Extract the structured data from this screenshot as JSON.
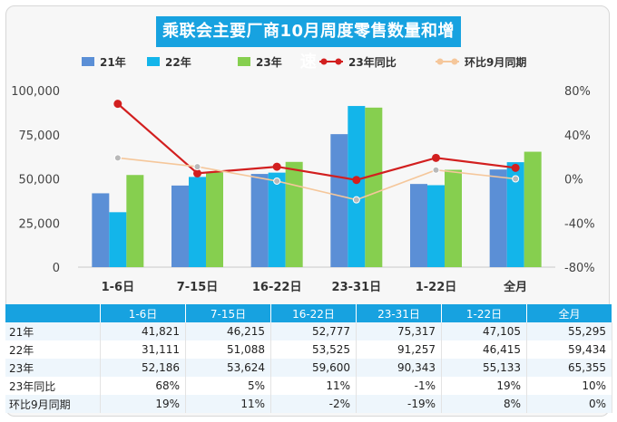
{
  "chart_data": {
    "type": "bar",
    "title": "乘联会主要厂商10月周度零售数量和增速",
    "categories": [
      "1-6日",
      "7-15日",
      "16-22日",
      "23-31日",
      "1-22日",
      "全月"
    ],
    "series": [
      {
        "name": "21年",
        "type": "bar",
        "color": "#5b8fd6",
        "values": [
          41821,
          46215,
          52777,
          75317,
          47105,
          55295
        ]
      },
      {
        "name": "22年",
        "type": "bar",
        "color": "#13b5ea",
        "values": [
          31111,
          51088,
          53525,
          91257,
          46415,
          59434
        ]
      },
      {
        "name": "23年",
        "type": "bar",
        "color": "#86cf4f",
        "values": [
          52186,
          53624,
          59600,
          90343,
          55133,
          65355
        ]
      },
      {
        "name": "23年同比",
        "type": "line",
        "axis": "right",
        "color": "#d21f1f",
        "values": [
          68,
          5,
          11,
          -1,
          19,
          10
        ]
      },
      {
        "name": "环比9月同期",
        "type": "line",
        "axis": "right",
        "color": "#f5c79b",
        "values": [
          19,
          11,
          -2,
          -19,
          8,
          0
        ]
      }
    ],
    "y_left": {
      "min": 0,
      "max": 100000,
      "ticks": [
        "0",
        "25,000",
        "50,000",
        "75,000",
        "100,000"
      ]
    },
    "y_right": {
      "min": -80,
      "max": 80,
      "ticks": [
        "-80%",
        "-40%",
        "0%",
        "40%",
        "80%"
      ]
    },
    "legend_position": "top",
    "grid": false
  },
  "table": {
    "header": [
      "",
      "1-6日",
      "7-15日",
      "16-22日",
      "23-31日",
      "1-22日",
      "全月"
    ],
    "rows": [
      {
        "label": "21年",
        "cells": [
          "41,821",
          "46,215",
          "52,777",
          "75,317",
          "47,105",
          "55,295"
        ]
      },
      {
        "label": "22年",
        "cells": [
          "31,111",
          "51,088",
          "53,525",
          "91,257",
          "46,415",
          "59,434"
        ]
      },
      {
        "label": "23年",
        "cells": [
          "52,186",
          "53,624",
          "59,600",
          "90,343",
          "55,133",
          "65,355"
        ]
      },
      {
        "label": "23年同比",
        "cells": [
          "68%",
          "5%",
          "11%",
          "-1%",
          "19%",
          "10%"
        ]
      },
      {
        "label": "环比9月同期",
        "cells": [
          "19%",
          "11%",
          "-2%",
          "-19%",
          "8%",
          "0%"
        ]
      }
    ]
  }
}
